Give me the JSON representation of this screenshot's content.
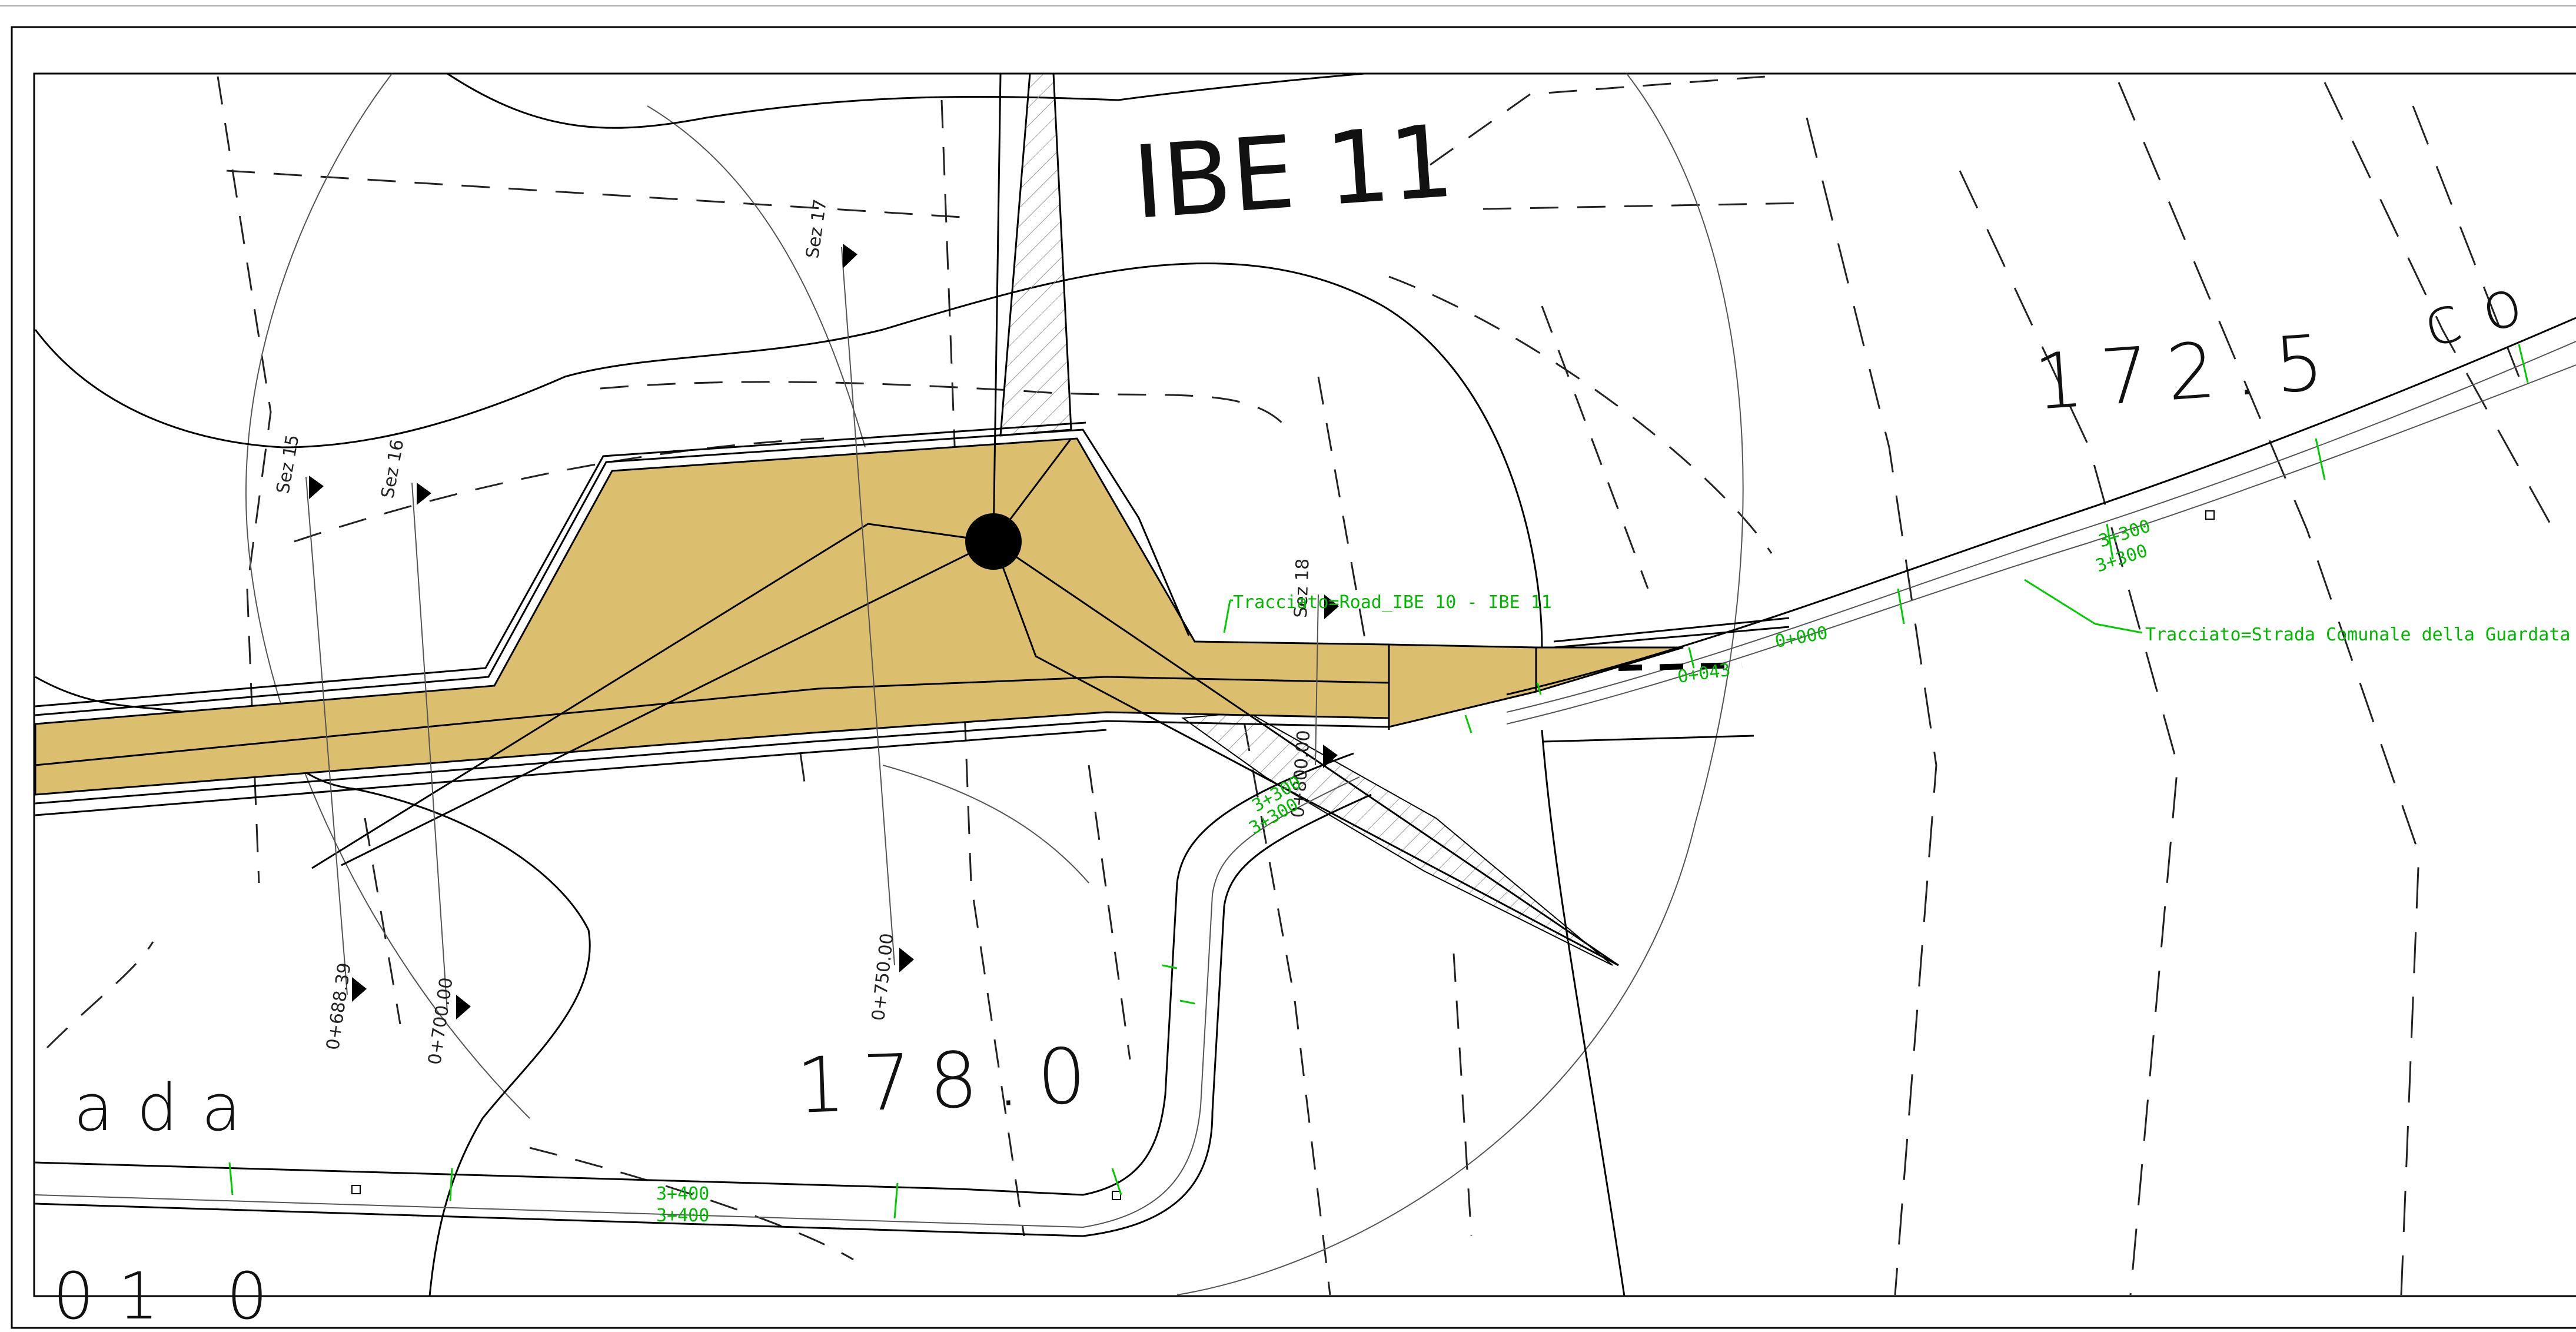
{
  "drawing": {
    "title": "IBE 11",
    "elevations": [
      "172.5",
      "178.0"
    ],
    "partial_labels": [
      "co",
      "ada",
      "01 0"
    ],
    "sections": [
      "Sez 15",
      "Sez 16",
      "Sez 17",
      "Sez 18"
    ],
    "chainages": [
      "0+688.39",
      "0+700.00",
      "0+750.00",
      "0+800.00"
    ],
    "road_labels": {
      "ramp": "Tracciato=Road_IBE 10 - IBE 11",
      "main": "Tracciato=Strada Comunale della Guardata"
    },
    "green_stations": [
      "3+300",
      "3+300",
      "0+000",
      "0+043",
      "3+300",
      "3+300",
      "3+400",
      "3+400"
    ]
  },
  "colors": {
    "fill": "#dcbf6e",
    "green": "#00cc00",
    "line": "#000000",
    "background": "#ffffff"
  }
}
